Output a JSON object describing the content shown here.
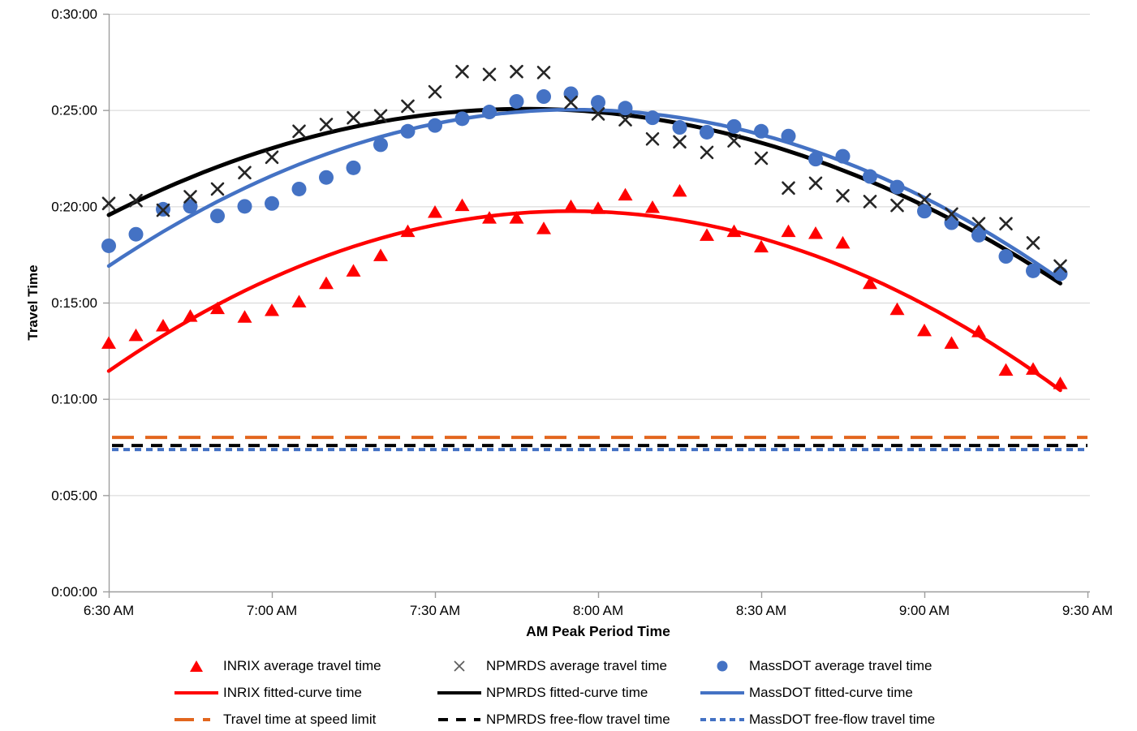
{
  "chart_data": {
    "type": "scatter",
    "title": "",
    "xlabel": "AM Peak Period Time",
    "ylabel": "Travel Time",
    "grid": "horizontal-gridlines-only",
    "legend_position": "bottom",
    "x_axis": {
      "range_minutes_after_630am": [
        0,
        180
      ],
      "tick_minutes": [
        0,
        30,
        60,
        90,
        120,
        150,
        180
      ],
      "tick_labels": [
        "6:30 AM",
        "7:00 AM",
        "7:30 AM",
        "8:00 AM",
        "8:30 AM",
        "9:00 AM",
        "9:30 AM"
      ]
    },
    "y_axis": {
      "range_minutes": [
        0,
        30
      ],
      "tick_minutes": [
        0,
        5,
        10,
        15,
        20,
        25,
        30
      ],
      "tick_labels": [
        "0:00:00",
        "0:05:00",
        "0:10:00",
        "0:15:00",
        "0:20:00",
        "0:25:00",
        "0:30:00"
      ]
    },
    "time_minutes_after_630am": [
      0,
      5,
      10,
      15,
      20,
      25,
      30,
      35,
      40,
      45,
      50,
      55,
      60,
      65,
      70,
      75,
      80,
      85,
      90,
      95,
      100,
      105,
      110,
      115,
      120,
      125,
      130,
      135,
      140,
      145,
      150,
      155,
      160,
      165,
      170,
      175
    ],
    "series": [
      {
        "name": "INRIX average travel time",
        "kind": "scatter",
        "marker": "triangle",
        "color": "#FF0000",
        "values_minutes": [
          12.9,
          13.3,
          13.8,
          14.3,
          14.7,
          14.25,
          14.6,
          15.05,
          16.0,
          16.65,
          17.45,
          18.7,
          19.7,
          20.05,
          19.4,
          19.4,
          18.85,
          20.0,
          19.9,
          20.6,
          19.95,
          20.8,
          18.5,
          18.7,
          17.9,
          18.7,
          18.6,
          18.1,
          16.0,
          14.65,
          13.55,
          12.9,
          13.5,
          11.5,
          11.55,
          10.8
        ]
      },
      {
        "name": "NPMRDS average travel time",
        "kind": "scatter",
        "marker": "x",
        "color": "#262626",
        "values_minutes": [
          20.15,
          20.3,
          19.8,
          20.5,
          20.9,
          21.75,
          22.55,
          23.9,
          24.25,
          24.6,
          24.7,
          25.2,
          25.95,
          27.0,
          26.85,
          27.0,
          26.95,
          25.4,
          24.8,
          24.5,
          23.5,
          23.35,
          22.8,
          23.4,
          22.5,
          20.95,
          21.2,
          20.55,
          20.25,
          20.05,
          20.35,
          19.6,
          19.1,
          19.1,
          18.1,
          16.9
        ]
      },
      {
        "name": "MassDOT average travel time",
        "kind": "scatter",
        "marker": "circle",
        "color": "#4472C4",
        "values_minutes": [
          17.95,
          18.55,
          19.85,
          20.0,
          19.5,
          20.0,
          20.15,
          20.9,
          21.5,
          22.0,
          23.2,
          23.9,
          24.2,
          24.55,
          24.9,
          25.45,
          25.7,
          25.85,
          25.4,
          25.1,
          24.6,
          24.1,
          23.85,
          24.15,
          23.9,
          23.65,
          22.45,
          22.6,
          21.55,
          21.0,
          19.75,
          19.15,
          18.5,
          17.4,
          16.65,
          16.5
        ]
      },
      {
        "name": "INRIX fitted-curve time",
        "kind": "fitted-curve",
        "color": "#FF0000",
        "anchor_points_minutes": [
          [
            0,
            11.45
          ],
          [
            85,
            19.75
          ],
          [
            175,
            10.45
          ]
        ]
      },
      {
        "name": "NPMRDS fitted-curve time",
        "kind": "fitted-curve",
        "color": "#000000",
        "anchor_points_minutes": [
          [
            0,
            19.55
          ],
          [
            80,
            25.05
          ],
          [
            175,
            16.0
          ]
        ]
      },
      {
        "name": "MassDOT fitted-curve time",
        "kind": "fitted-curve",
        "color": "#4472C4",
        "anchor_points_minutes": [
          [
            0,
            16.9
          ],
          [
            90,
            25.0
          ],
          [
            175,
            16.2
          ]
        ]
      },
      {
        "name": "Travel time at speed limit",
        "kind": "flat-dashed",
        "dash": "long",
        "color": "#E2661E",
        "value_minutes": 8.0
      },
      {
        "name": "NPMRDS free-flow travel time",
        "kind": "flat-dashed",
        "dash": "medium",
        "color": "#000000",
        "value_minutes": 7.58
      },
      {
        "name": "MassDOT free-flow travel time",
        "kind": "flat-dashed",
        "dash": "short",
        "color": "#4472C4",
        "value_minutes": 7.37
      }
    ]
  }
}
